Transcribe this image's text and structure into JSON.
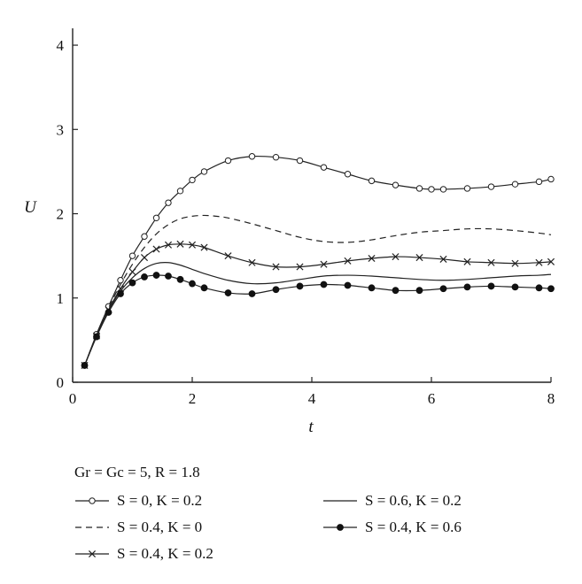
{
  "chart_data": {
    "type": "line",
    "xlabel": "t",
    "ylabel": "U",
    "xlim": [
      0,
      8
    ],
    "ylim": [
      0,
      4.2
    ],
    "xticks": [
      "0",
      "2",
      "4",
      "6",
      "8"
    ],
    "yticks": [
      "0",
      "1",
      "2",
      "3",
      "4"
    ],
    "grid": false,
    "legend_title": "Gr = Gc = 5, R = 1.8",
    "legend_placement": "below",
    "series": [
      {
        "name": "S = 0, K = 0.2",
        "marker": "open-circle",
        "dash": "solid",
        "x": [
          0.2,
          0.4,
          0.6,
          0.8,
          1.0,
          1.2,
          1.4,
          1.6,
          1.8,
          2.0,
          2.2,
          2.6,
          3.0,
          3.4,
          3.8,
          4.2,
          4.6,
          5.0,
          5.4,
          5.8,
          6.0,
          6.2,
          6.6,
          7.0,
          7.4,
          7.8,
          8.0
        ],
        "y": [
          0.2,
          0.57,
          0.9,
          1.21,
          1.5,
          1.73,
          1.95,
          2.13,
          2.27,
          2.4,
          2.5,
          2.63,
          2.68,
          2.67,
          2.63,
          2.55,
          2.47,
          2.39,
          2.34,
          2.3,
          2.29,
          2.29,
          2.3,
          2.32,
          2.35,
          2.38,
          2.41
        ]
      },
      {
        "name": "S = 0.4, K = 0",
        "marker": "none",
        "dash": "dashed",
        "x": [
          0.2,
          0.4,
          0.6,
          0.8,
          1.0,
          1.2,
          1.4,
          1.6,
          1.8,
          2.0,
          2.2,
          2.4,
          2.6,
          3.0,
          3.4,
          3.8,
          4.2,
          4.6,
          5.0,
          5.4,
          5.8,
          6.2,
          6.6,
          7.0,
          7.4,
          7.8,
          8.0
        ],
        "y": [
          0.2,
          0.56,
          0.88,
          1.16,
          1.4,
          1.6,
          1.76,
          1.87,
          1.94,
          1.97,
          1.98,
          1.97,
          1.95,
          1.88,
          1.8,
          1.72,
          1.67,
          1.66,
          1.69,
          1.74,
          1.78,
          1.8,
          1.82,
          1.82,
          1.8,
          1.77,
          1.75
        ]
      },
      {
        "name": "S = 0.4, K = 0.2",
        "marker": "cross",
        "dash": "solid",
        "x": [
          0.2,
          0.4,
          0.6,
          0.8,
          1.0,
          1.2,
          1.4,
          1.6,
          1.8,
          2.0,
          2.2,
          2.6,
          3.0,
          3.4,
          3.8,
          4.2,
          4.6,
          5.0,
          5.4,
          5.8,
          6.2,
          6.6,
          7.0,
          7.4,
          7.8,
          8.0
        ],
        "y": [
          0.2,
          0.55,
          0.86,
          1.11,
          1.31,
          1.48,
          1.58,
          1.63,
          1.64,
          1.63,
          1.6,
          1.5,
          1.42,
          1.37,
          1.37,
          1.4,
          1.44,
          1.47,
          1.49,
          1.48,
          1.46,
          1.43,
          1.42,
          1.41,
          1.42,
          1.43
        ]
      },
      {
        "name": "S = 0.6, K = 0.2",
        "marker": "none",
        "dash": "solid",
        "x": [
          0.2,
          0.4,
          0.6,
          0.8,
          1.0,
          1.2,
          1.4,
          1.6,
          1.8,
          2.0,
          2.2,
          2.6,
          3.0,
          3.4,
          3.8,
          4.2,
          4.6,
          5.0,
          5.4,
          5.8,
          6.2,
          6.6,
          7.0,
          7.4,
          7.8,
          8.0
        ],
        "y": [
          0.2,
          0.55,
          0.85,
          1.08,
          1.24,
          1.35,
          1.41,
          1.42,
          1.39,
          1.34,
          1.29,
          1.21,
          1.17,
          1.18,
          1.22,
          1.26,
          1.27,
          1.26,
          1.24,
          1.22,
          1.21,
          1.22,
          1.24,
          1.26,
          1.27,
          1.28
        ]
      },
      {
        "name": "S = 0.4, K = 0.6",
        "marker": "filled-circle",
        "dash": "solid",
        "x": [
          0.2,
          0.4,
          0.6,
          0.8,
          1.0,
          1.2,
          1.4,
          1.6,
          1.8,
          2.0,
          2.2,
          2.6,
          3.0,
          3.4,
          3.8,
          4.2,
          4.6,
          5.0,
          5.4,
          5.8,
          6.2,
          6.6,
          7.0,
          7.4,
          7.8,
          8.0
        ],
        "y": [
          0.2,
          0.54,
          0.83,
          1.05,
          1.18,
          1.25,
          1.27,
          1.26,
          1.22,
          1.17,
          1.12,
          1.06,
          1.05,
          1.1,
          1.14,
          1.16,
          1.15,
          1.12,
          1.09,
          1.09,
          1.11,
          1.13,
          1.14,
          1.13,
          1.12,
          1.11
        ]
      }
    ]
  }
}
